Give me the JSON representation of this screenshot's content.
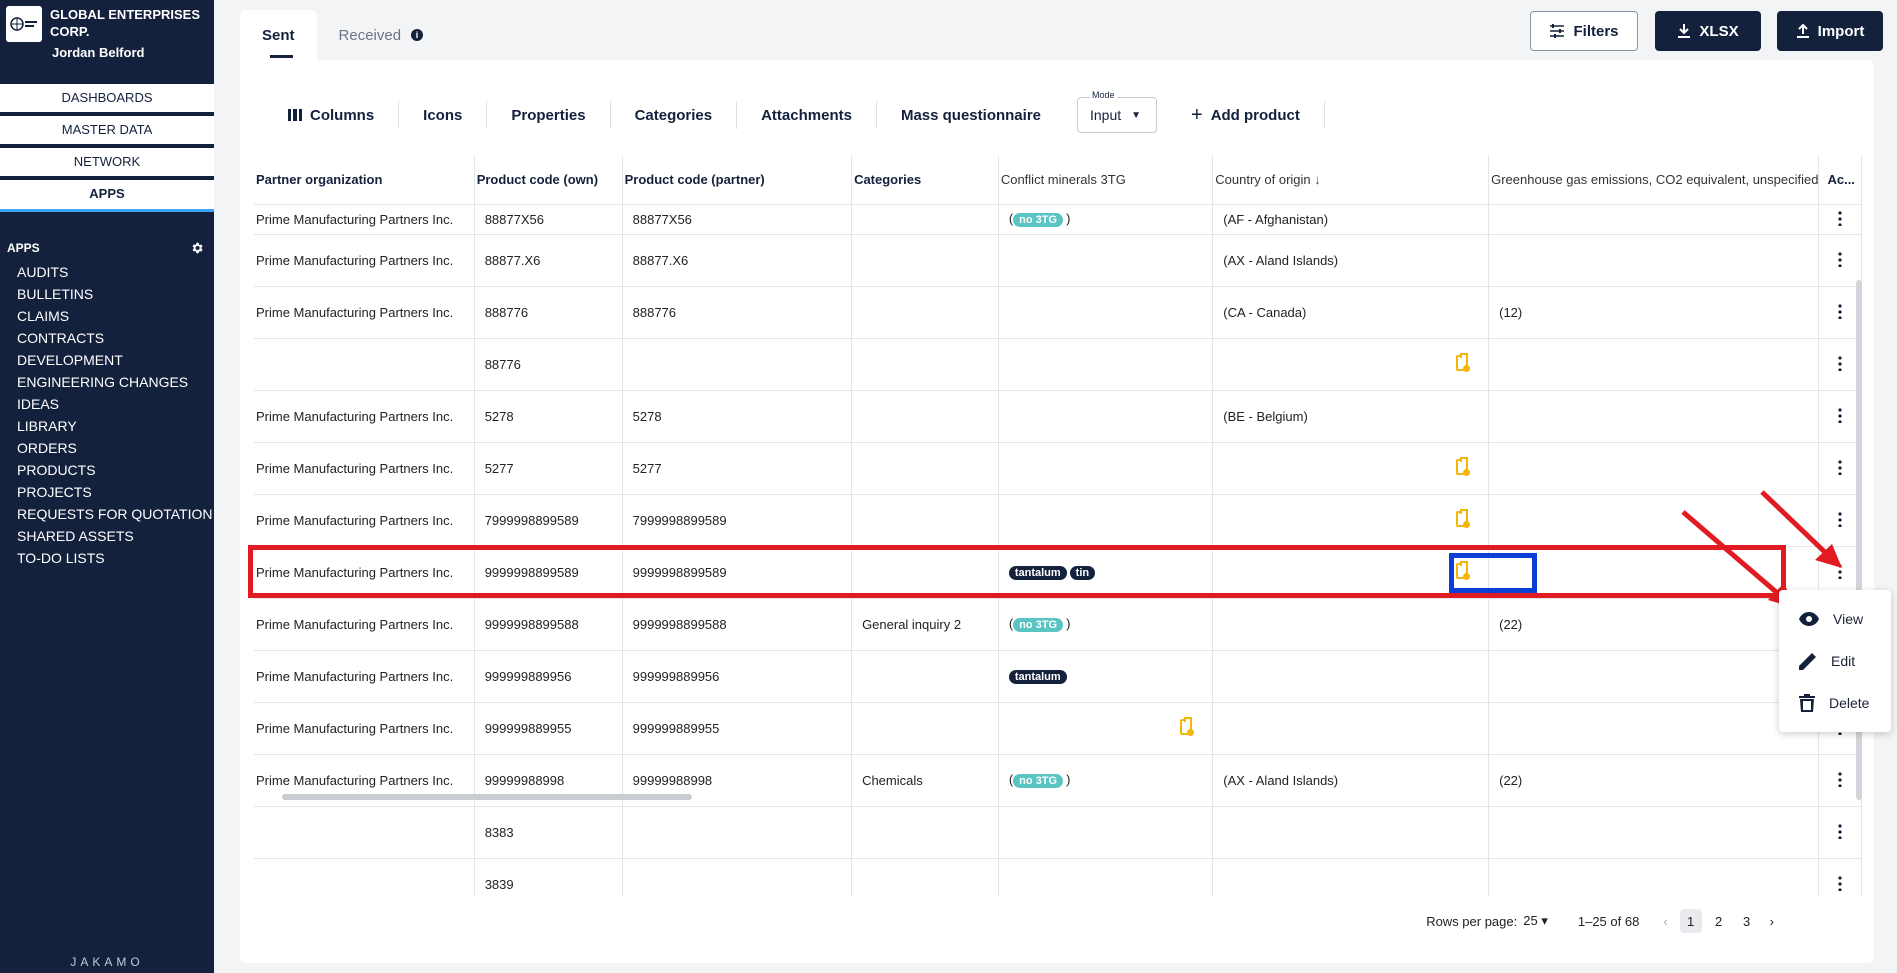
{
  "org": {
    "name_line1": "GLOBAL ENTERPRISES",
    "name_line2": "CORP.",
    "user": "Jordan Belford"
  },
  "topnav": [
    "DASHBOARDS",
    "MASTER DATA",
    "NETWORK",
    "APPS"
  ],
  "apps_heading": "APPS",
  "apps": [
    "AUDITS",
    "BULLETINS",
    "CLAIMS",
    "CONTRACTS",
    "DEVELOPMENT",
    "ENGINEERING CHANGES",
    "IDEAS",
    "LIBRARY",
    "ORDERS",
    "PRODUCTS",
    "PROJECTS",
    "REQUESTS FOR QUOTATION",
    "SHARED ASSETS",
    "TO-DO LISTS"
  ],
  "brand": "JAKAMO",
  "tabs": {
    "sent": "Sent",
    "received": "Received"
  },
  "buttons": {
    "filters": "Filters",
    "xlsx": "XLSX",
    "import": "Import"
  },
  "toolbar": {
    "columns": "Columns",
    "icons": "Icons",
    "properties": "Properties",
    "categories": "Categories",
    "attachments": "Attachments",
    "mass": "Mass questionnaire",
    "mode_label": "Mode",
    "mode_value": "Input",
    "add": "Add product"
  },
  "headers": [
    "Partner organization",
    "Product code (own)",
    "Product code (partner)",
    "Categories",
    "Conflict minerals 3TG",
    "Country of origin",
    "Greenhouse gas emissions, CO2 equivalent, unspecified",
    "Ac..."
  ],
  "rows": [
    [
      "Prime Manufacturing Partners Inc.",
      "88877X56",
      "88877X56",
      "",
      "no3tg",
      "(AF - Afghanistan)",
      "",
      ""
    ],
    [
      "Prime Manufacturing Partners Inc.",
      "88877.X6",
      "88877.X6",
      "",
      "",
      "(AX - Aland Islands)",
      "",
      ""
    ],
    [
      "Prime Manufacturing Partners Inc.",
      "888776",
      "888776",
      "",
      "",
      "(CA - Canada)",
      "(12)",
      ""
    ],
    [
      "",
      "88776",
      "",
      "",
      "",
      "clip",
      "",
      ""
    ],
    [
      "Prime Manufacturing Partners Inc.",
      "5278",
      "5278",
      "",
      "",
      "(BE - Belgium)",
      "",
      ""
    ],
    [
      "Prime Manufacturing Partners Inc.",
      "5277",
      "5277",
      "",
      "",
      "clip",
      "",
      ""
    ],
    [
      "Prime Manufacturing Partners Inc.",
      "7999998899589",
      "7999998899589",
      "",
      "",
      "clip",
      "",
      ""
    ],
    [
      "Prime Manufacturing Partners Inc.",
      "9999998899589",
      "9999998899589",
      "",
      "tantalum,tin",
      "clip",
      "",
      ""
    ],
    [
      "Prime Manufacturing Partners Inc.",
      "9999998899588",
      "9999998899588",
      "General inquiry 2",
      "no3tg",
      "",
      "(22)",
      ""
    ],
    [
      "Prime Manufacturing Partners Inc.",
      "999999889956",
      "999999889956",
      "",
      "tantalum",
      "",
      "",
      ""
    ],
    [
      "Prime Manufacturing Partners Inc.",
      "999999889955",
      "999999889955",
      "",
      "clip",
      "",
      "",
      ""
    ],
    [
      "Prime Manufacturing Partners Inc.",
      "99999988998",
      "99999988998",
      "Chemicals",
      "no3tg",
      "(AX - Aland Islands)",
      "(22)",
      ""
    ],
    [
      "",
      "8383",
      "",
      "",
      "",
      "",
      "",
      ""
    ],
    [
      "",
      "3839",
      "",
      "",
      "",
      "",
      "",
      ""
    ]
  ],
  "chips": {
    "no3tg": "no 3TG",
    "tantalum": "tantalum",
    "tin": "tin"
  },
  "menu": {
    "view": "View",
    "edit": "Edit",
    "delete": "Delete"
  },
  "pager": {
    "rows_label": "Rows per page:",
    "rows_value": "25",
    "range": "1–25 of 68",
    "pages": [
      "1",
      "2",
      "3"
    ]
  }
}
